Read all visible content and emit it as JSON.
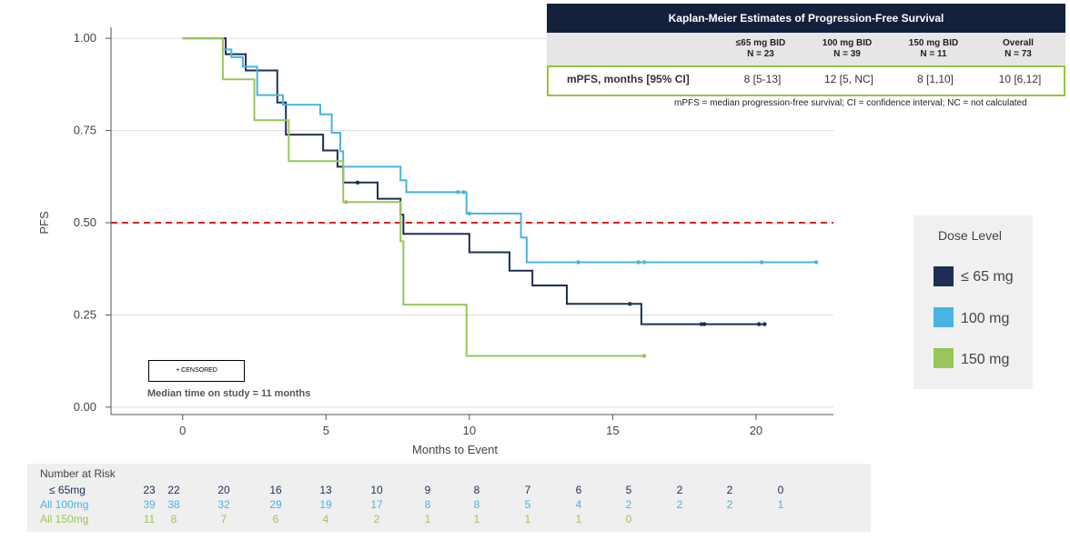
{
  "chart_data": {
    "type": "line",
    "xlabel": "Months to Event",
    "ylabel": "PFS",
    "xlim": [
      -2.5,
      22.7
    ],
    "ylim": [
      -0.02,
      1.03
    ],
    "xticks": [
      0,
      5,
      10,
      15,
      20
    ],
    "yticks": [
      0.0,
      0.25,
      0.5,
      0.75,
      1.0
    ],
    "ytick_labels": [
      "0.00",
      "0.25",
      "0.50",
      "0.75",
      "1.00"
    ],
    "reference_line": {
      "y": 0.5,
      "color": "#e02020",
      "style": "dashed"
    },
    "series": [
      {
        "name": "≤ 65 mg",
        "color": "#1b2f57",
        "x": [
          0,
          1.2,
          1.5,
          2.0,
          2.2,
          3.3,
          3.3,
          3.6,
          4.9,
          5.4,
          5.5,
          5.6,
          6.8,
          7.6,
          7.7,
          10.0,
          11.4,
          12.2,
          13.4,
          16.0,
          20.3
        ],
        "y": [
          1.0,
          1.0,
          0.957,
          0.957,
          0.913,
          0.87,
          0.826,
          0.739,
          0.696,
          0.652,
          0.652,
          0.609,
          0.565,
          0.522,
          0.47,
          0.42,
          0.37,
          0.33,
          0.28,
          0.225,
          0.225
        ],
        "censored_x": [
          6.1,
          15.6,
          18.1,
          18.2,
          20.1,
          20.3
        ],
        "censored_y": [
          0.609,
          0.28,
          0.225,
          0.225,
          0.225,
          0.225
        ]
      },
      {
        "name": "100 mg",
        "color": "#4ab3e2",
        "x": [
          0,
          1.2,
          1.4,
          1.7,
          2.1,
          2.6,
          3.5,
          4.8,
          5.2,
          5.5,
          5.6,
          7.6,
          7.8,
          9.9,
          11.8,
          12.0,
          22.1
        ],
        "y": [
          1.0,
          1.0,
          0.97,
          0.949,
          0.923,
          0.846,
          0.82,
          0.794,
          0.744,
          0.694,
          0.652,
          0.615,
          0.583,
          0.525,
          0.46,
          0.393,
          0.393
        ],
        "censored_x": [
          9.6,
          9.8,
          10.0,
          13.8,
          15.9,
          16.1,
          20.2,
          22.1
        ],
        "censored_y": [
          0.583,
          0.583,
          0.525,
          0.393,
          0.393,
          0.393,
          0.393,
          0.393
        ]
      },
      {
        "name": "150 mg",
        "color": "#9ac55a",
        "x": [
          0,
          1.4,
          2.5,
          3.7,
          5.6,
          7.6,
          7.7,
          9.9,
          16.1
        ],
        "y": [
          1.0,
          0.889,
          0.778,
          0.667,
          0.556,
          0.45,
          0.278,
          0.139,
          0.139
        ],
        "censored_x": [
          5.7,
          16.1
        ],
        "censored_y": [
          0.556,
          0.139
        ]
      }
    ]
  },
  "km_table": {
    "title": "Kaplan-Meier Estimates of Progression-Free Survival",
    "col_headers": [
      "≤65 mg BID\nN = 23",
      "100 mg BID\nN = 39",
      "150 mg BID\nN = 11",
      "Overall\nN = 73"
    ],
    "row_label": "mPFS, months [95% CI]",
    "row_values": [
      "8 [5-13]",
      "12 [5, NC]",
      "8 [1,10]",
      "10 [6,12]"
    ],
    "footnote": "mPFS = median progression-free survival; CI = confidence interval; NC = not calculated"
  },
  "legend": {
    "title": "Dose Level",
    "items": [
      {
        "label": "≤ 65 mg",
        "color": "#1b2f57"
      },
      {
        "label": "100 mg",
        "color": "#4ab3e2"
      },
      {
        "label": "150 mg",
        "color": "#9ac55a"
      }
    ]
  },
  "censored_label": "+ CENSORED",
  "median_note": "Median time on study = 11 months",
  "risk_table": {
    "title": "Number at Risk",
    "rows": [
      {
        "label": "≤ 65mg",
        "color": "#1b2f57",
        "values": [
          "23",
          "22",
          "20",
          "16",
          "13",
          "10",
          "9",
          "8",
          "7",
          "6",
          "5",
          "2",
          "2",
          "0"
        ]
      },
      {
        "label": "All 100mg",
        "color": "#4ab3e2",
        "values": [
          "39",
          "38",
          "32",
          "29",
          "19",
          "17",
          "8",
          "8",
          "5",
          "4",
          "2",
          "2",
          "2",
          "1"
        ]
      },
      {
        "label": "All 150mg",
        "color": "#9ac55a",
        "values": [
          "11",
          "8",
          "7",
          "6",
          "4",
          "2",
          "1",
          "1",
          "1",
          "1",
          "0"
        ]
      }
    ]
  }
}
